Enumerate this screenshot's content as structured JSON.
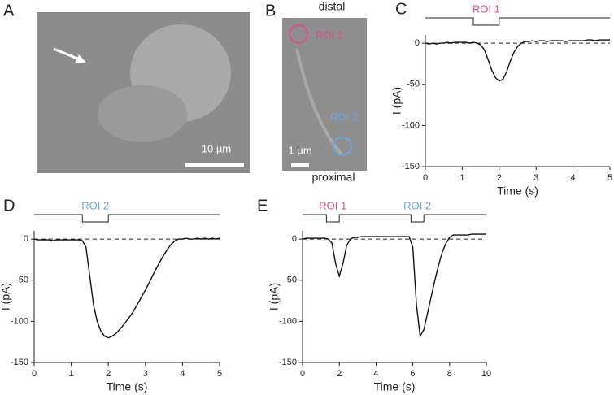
{
  "panels": {
    "A": {
      "label": "A",
      "scale_bar": "10 µm"
    },
    "B": {
      "label": "B",
      "top": "distal",
      "bottom": "proximal",
      "roi1": "ROI 1",
      "roi2": "ROI 2",
      "scale_bar": "1 µm"
    }
  },
  "chart_data": [
    {
      "type": "line",
      "panel": "C",
      "x_label": "Time (s)",
      "y_label": "I (pA)",
      "xlim": [
        0,
        5
      ],
      "xticks": [
        0,
        1,
        2,
        3,
        4,
        5
      ],
      "ylim": [
        -150,
        10
      ],
      "yticks": [
        0,
        -50,
        -100,
        -150
      ],
      "reference_y": 0,
      "stimuli": [
        {
          "label": "ROI 1",
          "color": "#d9508a",
          "start": 1.3,
          "end": 2.0
        }
      ],
      "series": [
        {
          "color": "#111111",
          "x": [
            0,
            0.1,
            0.2,
            0.3,
            0.4,
            0.5,
            0.6,
            0.7,
            0.8,
            0.9,
            1.0,
            1.1,
            1.2,
            1.3,
            1.4,
            1.5,
            1.6,
            1.7,
            1.8,
            1.9,
            2.0,
            2.1,
            2.2,
            2.3,
            2.4,
            2.5,
            2.6,
            2.7,
            2.8,
            2.9,
            3.0,
            3.1,
            3.2,
            3.3,
            3.4,
            3.5,
            3.6,
            3.7,
            3.8,
            3.9,
            4.0,
            4.1,
            4.2,
            4.3,
            4.4,
            4.5,
            4.6,
            4.7,
            4.8,
            4.9,
            5.0
          ],
          "values": [
            0,
            -1,
            0,
            -1,
            0,
            0,
            1,
            0,
            1,
            1,
            1,
            1,
            0,
            1,
            0,
            -2,
            -8,
            -20,
            -33,
            -42,
            -46,
            -44,
            -35,
            -22,
            -11,
            -4,
            0,
            2,
            2,
            3,
            2,
            3,
            3,
            2,
            3,
            3,
            3,
            3,
            2,
            3,
            3,
            3,
            3,
            3,
            4,
            4,
            3,
            4,
            4,
            4,
            4
          ]
        }
      ]
    },
    {
      "type": "line",
      "panel": "D",
      "x_label": "Time (s)",
      "y_label": "I (pA)",
      "xlim": [
        0,
        5
      ],
      "xticks": [
        0,
        1,
        2,
        3,
        4,
        5
      ],
      "ylim": [
        -150,
        10
      ],
      "yticks": [
        0,
        -50,
        -100,
        -150
      ],
      "reference_y": 0,
      "stimuli": [
        {
          "label": "ROI 2",
          "color": "#6aa6dc",
          "start": 1.3,
          "end": 2.0
        }
      ],
      "series": [
        {
          "color": "#111111",
          "x": [
            0,
            0.1,
            0.2,
            0.3,
            0.4,
            0.5,
            0.6,
            0.7,
            0.8,
            0.9,
            1.0,
            1.1,
            1.2,
            1.3,
            1.4,
            1.5,
            1.6,
            1.7,
            1.8,
            1.9,
            2.0,
            2.1,
            2.2,
            2.3,
            2.4,
            2.5,
            2.6,
            2.7,
            2.8,
            2.9,
            3.0,
            3.1,
            3.2,
            3.3,
            3.4,
            3.5,
            3.6,
            3.7,
            3.8,
            3.9,
            4.0,
            4.1,
            4.2,
            4.3,
            4.4,
            4.5,
            4.6,
            4.7,
            4.8,
            4.9,
            5.0
          ],
          "values": [
            0,
            -1,
            -1,
            -1,
            -1,
            -2,
            -1,
            -1,
            -1,
            -1,
            -1,
            -1,
            -1,
            -2,
            -10,
            -45,
            -80,
            -100,
            -112,
            -118,
            -120,
            -118,
            -115,
            -110,
            -105,
            -99,
            -93,
            -86,
            -78,
            -70,
            -62,
            -53,
            -44,
            -35,
            -27,
            -19,
            -12,
            -6,
            -2,
            0,
            0,
            1,
            0,
            0,
            1,
            0,
            1,
            0,
            1,
            0,
            1
          ]
        }
      ]
    },
    {
      "type": "line",
      "panel": "E",
      "x_label": "Time (s)",
      "y_label": "I (pA)",
      "xlim": [
        0,
        10
      ],
      "xticks": [
        0,
        2,
        4,
        6,
        8,
        10
      ],
      "ylim": [
        -150,
        10
      ],
      "yticks": [
        0,
        -50,
        -100,
        -150
      ],
      "reference_y": 0,
      "stimuli": [
        {
          "label": "ROI 1",
          "color": "#d9508a",
          "start": 1.3,
          "end": 2.0
        },
        {
          "label": "ROI 2",
          "color": "#6aa6dc",
          "start": 5.9,
          "end": 6.6
        }
      ],
      "series": [
        {
          "color": "#111111",
          "x": [
            0,
            0.2,
            0.4,
            0.6,
            0.8,
            1.0,
            1.2,
            1.4,
            1.6,
            1.8,
            2.0,
            2.2,
            2.4,
            2.6,
            2.8,
            3.0,
            3.2,
            3.4,
            3.6,
            3.8,
            4.0,
            4.2,
            4.4,
            4.6,
            4.8,
            5.0,
            5.2,
            5.4,
            5.6,
            5.8,
            6.0,
            6.2,
            6.4,
            6.6,
            6.8,
            7.0,
            7.2,
            7.4,
            7.6,
            7.8,
            8.0,
            8.2,
            8.4,
            8.6,
            8.8,
            9.0,
            9.2,
            9.4,
            9.6,
            9.8,
            10.0
          ],
          "values": [
            0,
            1,
            1,
            1,
            1,
            1,
            1,
            0,
            -5,
            -30,
            -45,
            -30,
            -8,
            0,
            2,
            2,
            3,
            3,
            3,
            3,
            3,
            3,
            3,
            3,
            3,
            3,
            3,
            3,
            3,
            3,
            -10,
            -80,
            -118,
            -110,
            -90,
            -70,
            -50,
            -32,
            -16,
            -5,
            2,
            5,
            5,
            5,
            5,
            5,
            6,
            6,
            6,
            6,
            6
          ]
        }
      ]
    }
  ]
}
